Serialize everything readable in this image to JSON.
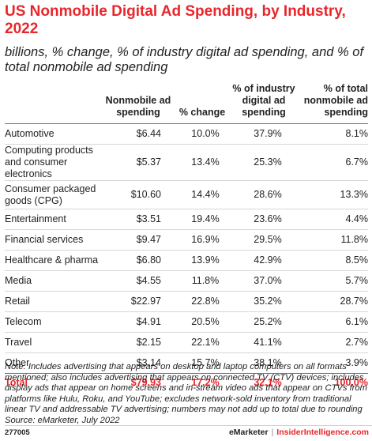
{
  "title": "US Nonmobile Digital Ad Spending, by Industry, 2022",
  "subtitle": "billions, % change, % of industry digital ad spending, and % of total nonmobile ad spending",
  "chart_data": {
    "type": "table",
    "columns": [
      "",
      "Nonmobile ad spending",
      "% change",
      "% of industry digital ad spending",
      "% of total nonmobile ad spending"
    ],
    "rows": [
      {
        "label": "Automotive",
        "spend": "$6.44",
        "change": "10.0%",
        "industry": "37.9%",
        "total": "8.1%"
      },
      {
        "label": "Computing products and consumer electronics",
        "spend": "$5.37",
        "change": "13.4%",
        "industry": "25.3%",
        "total": "6.7%"
      },
      {
        "label": "Consumer packaged goods (CPG)",
        "spend": "$10.60",
        "change": "14.4%",
        "industry": "28.6%",
        "total": "13.3%"
      },
      {
        "label": "Entertainment",
        "spend": "$3.51",
        "change": "19.4%",
        "industry": "23.6%",
        "total": "4.4%"
      },
      {
        "label": "Financial services",
        "spend": "$9.47",
        "change": "16.9%",
        "industry": "29.5%",
        "total": "11.8%"
      },
      {
        "label": "Healthcare & pharma",
        "spend": "$6.80",
        "change": "13.9%",
        "industry": "42.9%",
        "total": "8.5%"
      },
      {
        "label": "Media",
        "spend": "$4.55",
        "change": "11.8%",
        "industry": "37.0%",
        "total": "5.7%"
      },
      {
        "label": "Retail",
        "spend": "$22.97",
        "change": "22.8%",
        "industry": "35.2%",
        "total": "28.7%"
      },
      {
        "label": "Telecom",
        "spend": "$4.91",
        "change": "20.5%",
        "industry": "25.2%",
        "total": "6.1%"
      },
      {
        "label": "Travel",
        "spend": "$2.15",
        "change": "22.1%",
        "industry": "41.1%",
        "total": "2.7%"
      },
      {
        "label": "Other",
        "spend": "$3.14",
        "change": "15.7%",
        "industry": "38.1%",
        "total": "3.9%"
      }
    ],
    "total": {
      "label": "Total",
      "spend": "$79.93",
      "change": "17.2%",
      "industry": "32.1%",
      "total": "100.0%"
    }
  },
  "note": "Note: Includes advertising that appears on desktop and laptop computers on all formats mentioned; also includes advertising that appears on connected TV (CTV) devices; includes display ads that appear on home screens and in-stream video ads that appear on CTVs from platforms like Hulu, Roku, and YouTube; excludes network-sold inventory from traditional linear TV and addressable TV advertising; numbers may not add up to total due to rounding",
  "source": "Source: eMarketer, July 2022",
  "footer": {
    "id": "277005",
    "brand1": "eMarketer",
    "separator": "|",
    "brand2": "InsiderIntelligence.com"
  },
  "colors": {
    "accent": "#e8262b",
    "text": "#222222"
  }
}
